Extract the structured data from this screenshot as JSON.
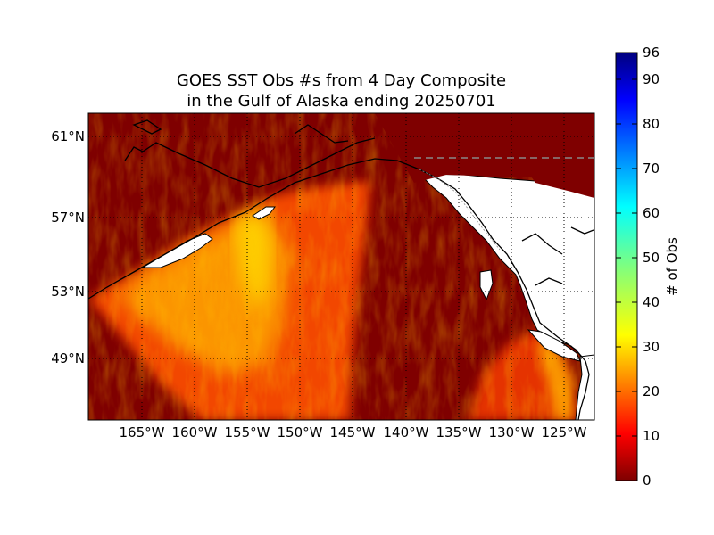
{
  "title": {
    "line1": "GOES SST Obs #s from 4 Day Composite",
    "line2": "in the Gulf of Alaska ending 20250701"
  },
  "map": {
    "region": "Gulf of Alaska",
    "lat_labels": [
      "61°N",
      "57°N",
      "53°N",
      "49°N"
    ],
    "lon_labels": [
      "165°W",
      "160°W",
      "155°W",
      "150°W",
      "145°W",
      "140°W",
      "135°W",
      "130°W",
      "125°W"
    ],
    "grid": "dotted",
    "ocean_base_color": "#7f0000",
    "land_color": "#ffffff",
    "coast_color": "#000000",
    "border_color": "#888888"
  },
  "colorbar": {
    "label": "# of Obs",
    "ticks": [
      "96",
      "90",
      "80",
      "70",
      "60",
      "50",
      "40",
      "30",
      "20",
      "10",
      "0"
    ],
    "min": 0,
    "max": 96,
    "colormap": "jet"
  }
}
